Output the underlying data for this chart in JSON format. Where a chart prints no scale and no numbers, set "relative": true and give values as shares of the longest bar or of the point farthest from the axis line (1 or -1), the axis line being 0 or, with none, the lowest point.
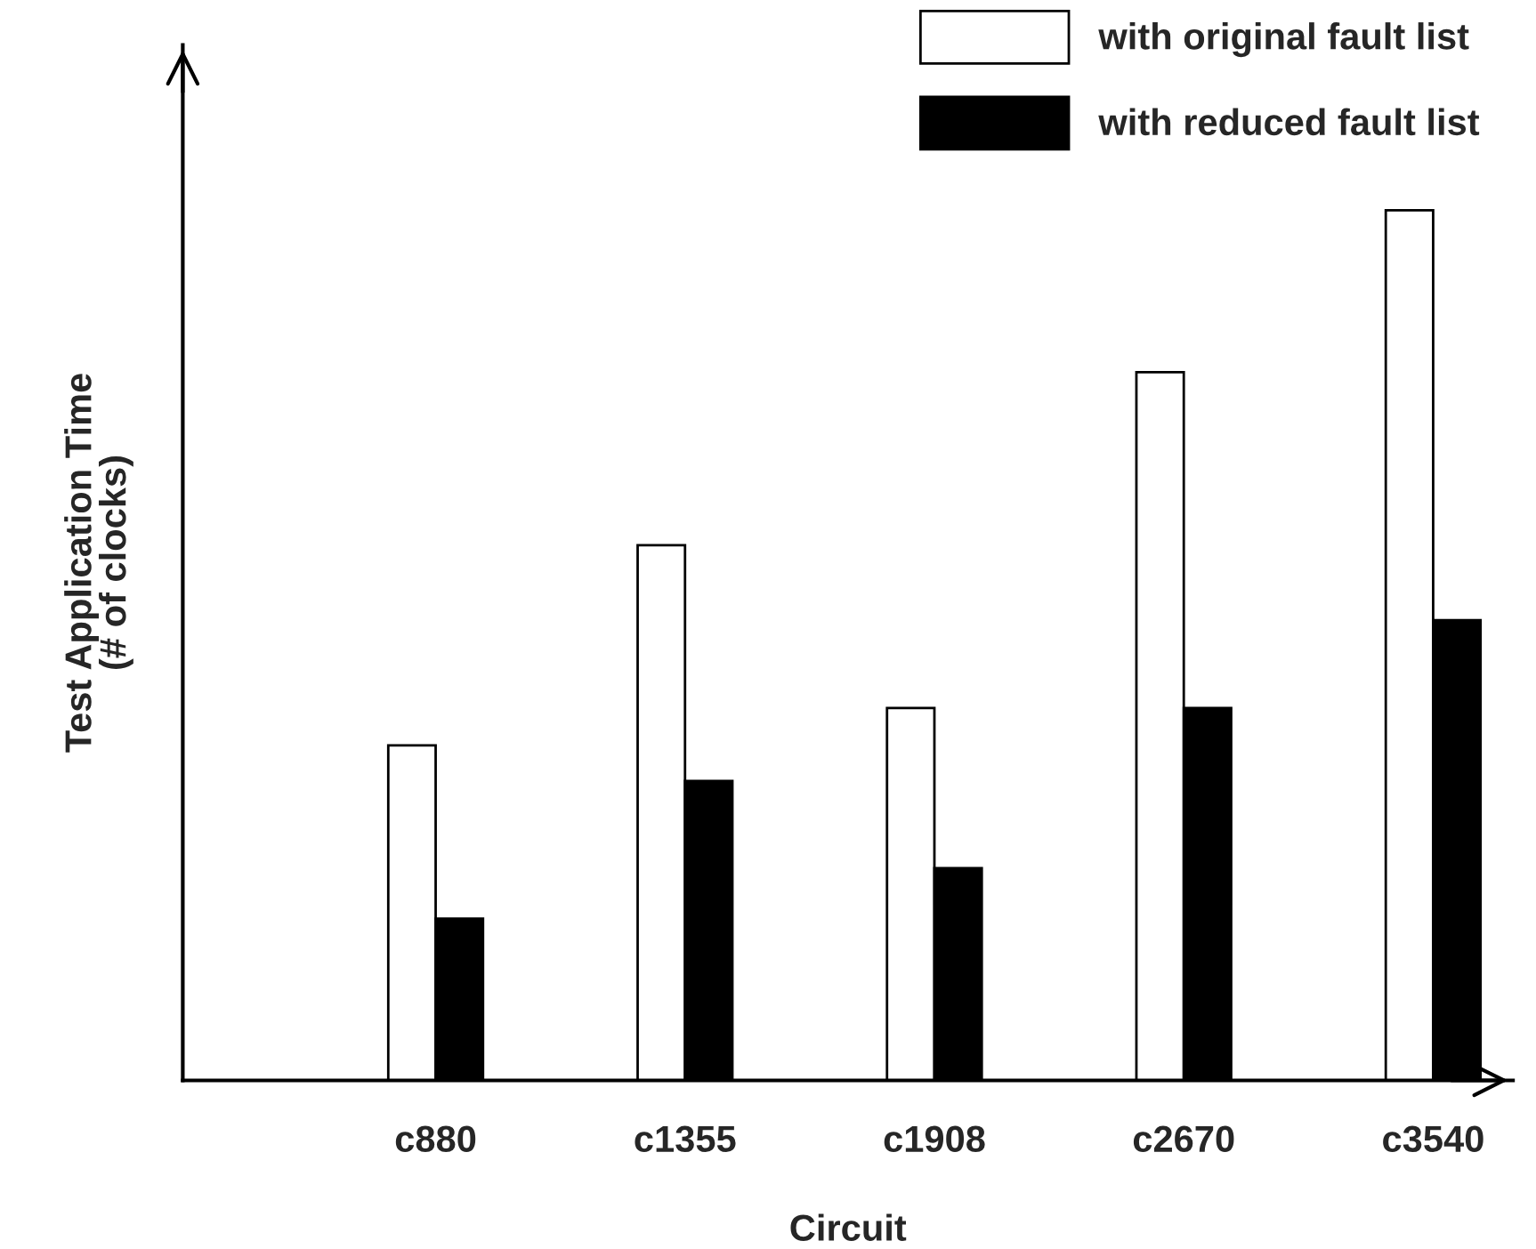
{
  "chart_data": {
    "type": "bar",
    "relative": true,
    "xlabel": "Circuit",
    "ylabel": "Test Application Time\n(# of clocks)",
    "categories": [
      "c880",
      "c1355",
      "c1908",
      "c2670",
      "c3540"
    ],
    "series": [
      {
        "name": "with original fault list",
        "color": "#ffffff",
        "values": [
          0.385,
          0.615,
          0.428,
          0.814,
          1.0
        ]
      },
      {
        "name": "with reduced fault list",
        "color": "#000000",
        "values": [
          0.186,
          0.344,
          0.244,
          0.428,
          0.529
        ]
      }
    ],
    "legend": "top right",
    "grid": false
  }
}
